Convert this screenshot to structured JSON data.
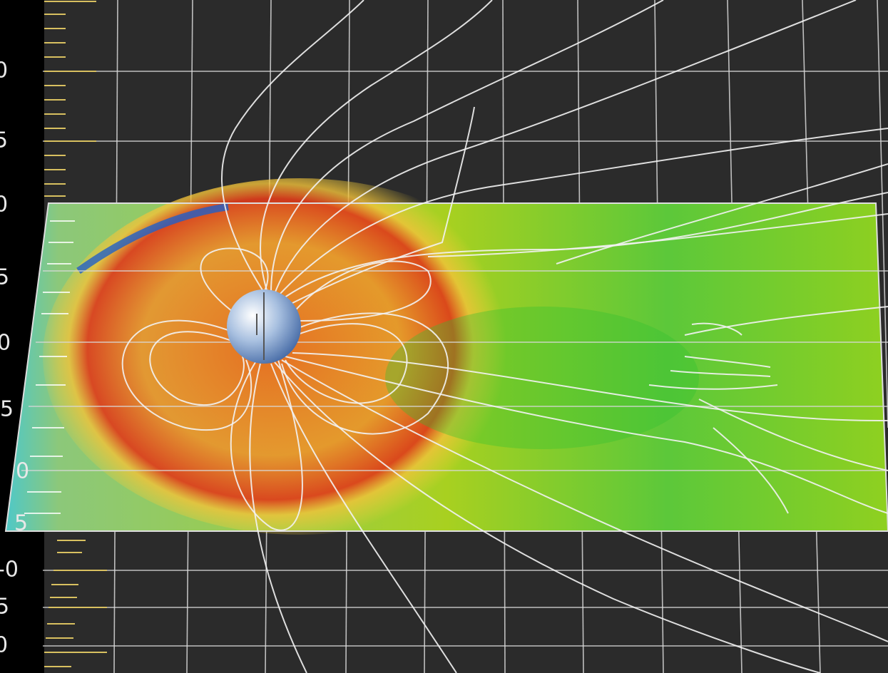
{
  "axis_labels": [
    "0",
    "5",
    "0",
    "5",
    "0",
    "5",
    "0",
    "5",
    "-0",
    "5",
    "0"
  ]
}
